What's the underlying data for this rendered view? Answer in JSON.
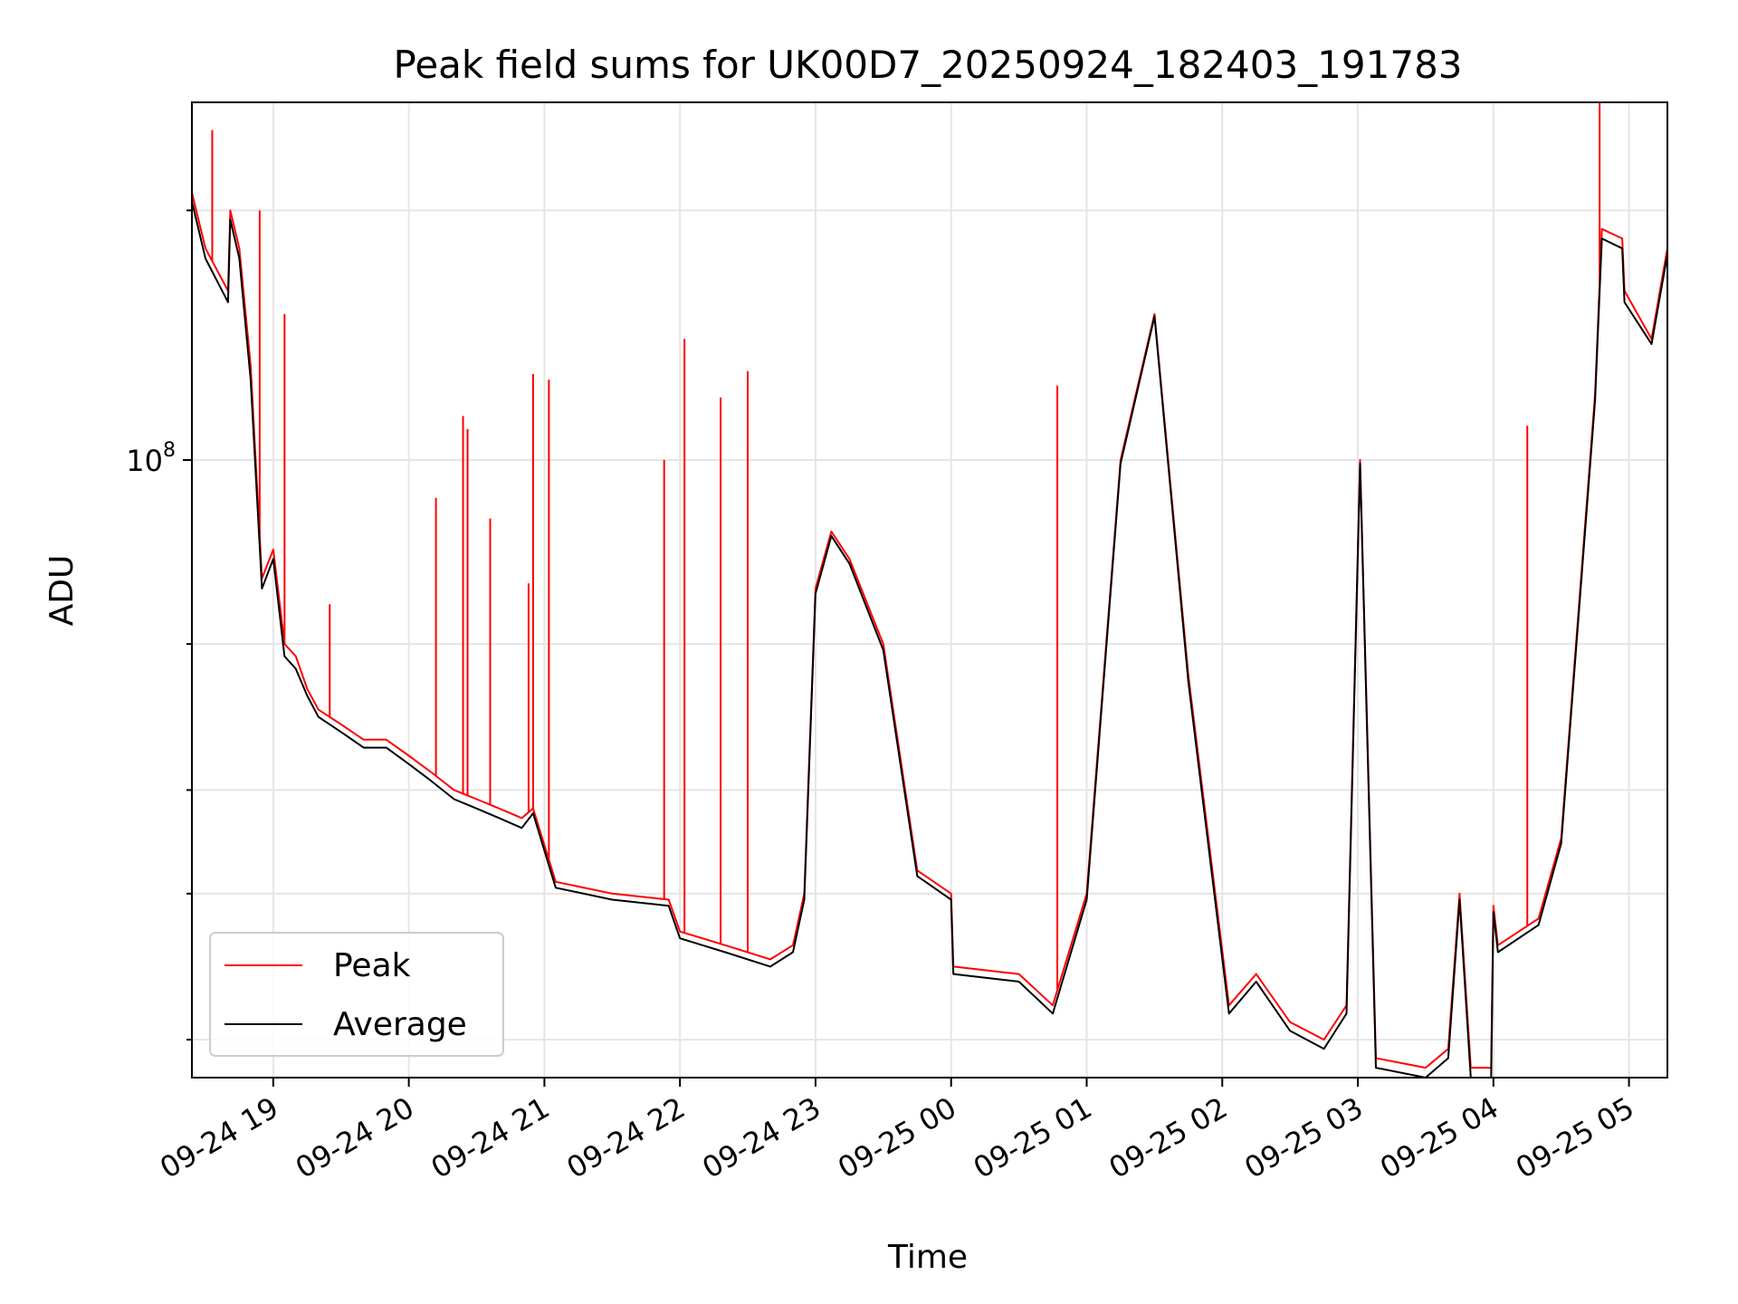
{
  "chart_data": {
    "type": "line",
    "title": "Peak field sums for UK00D7_20250924_182403_191783",
    "xlabel": "Time",
    "ylabel": "ADU",
    "yscale": "log",
    "y_tick_label": "10^8",
    "ylim": [
      18000000,
      270000000
    ],
    "xlim": [
      "2025-09-24 18:24",
      "2025-09-25 05:17"
    ],
    "x_ticks": [
      "09-24 19",
      "09-24 20",
      "09-24 21",
      "09-24 22",
      "09-24 23",
      "09-25 00",
      "09-25 01",
      "09-25 02",
      "09-25 03",
      "09-25 04",
      "09-25 05"
    ],
    "grid": true,
    "legend_position": "lower-left",
    "series": [
      {
        "name": "Peak",
        "color": "#ff0000",
        "x": [
          "2025-09-24 18:24",
          "2025-09-24 18:30",
          "2025-09-24 18:40",
          "2025-09-24 18:41",
          "2025-09-24 18:45",
          "2025-09-24 18:50",
          "2025-09-24 18:55",
          "2025-09-24 19:00",
          "2025-09-24 19:05",
          "2025-09-24 19:10",
          "2025-09-24 19:15",
          "2025-09-24 19:20",
          "2025-09-24 19:30",
          "2025-09-24 19:40",
          "2025-09-24 19:50",
          "2025-09-24 20:00",
          "2025-09-24 20:10",
          "2025-09-24 20:20",
          "2025-09-24 20:30",
          "2025-09-24 20:40",
          "2025-09-24 20:50",
          "2025-09-24 20:55",
          "2025-09-24 21:05",
          "2025-09-24 21:30",
          "2025-09-24 21:55",
          "2025-09-24 22:00",
          "2025-09-24 22:20",
          "2025-09-24 22:40",
          "2025-09-24 22:50",
          "2025-09-24 22:55",
          "2025-09-24 23:00",
          "2025-09-24 23:07",
          "2025-09-24 23:15",
          "2025-09-24 23:30",
          "2025-09-24 23:45",
          "2025-09-25 00:00",
          "2025-09-25 00:01",
          "2025-09-25 00:30",
          "2025-09-25 00:45",
          "2025-09-25 01:00",
          "2025-09-25 01:15",
          "2025-09-25 01:30",
          "2025-09-25 01:45",
          "2025-09-25 02:03",
          "2025-09-25 02:15",
          "2025-09-25 02:30",
          "2025-09-25 02:45",
          "2025-09-25 02:55",
          "2025-09-25 03:01",
          "2025-09-25 03:08",
          "2025-09-25 03:30",
          "2025-09-25 03:40",
          "2025-09-25 03:45",
          "2025-09-25 03:50",
          "2025-09-25 03:59",
          "2025-09-25 04:00",
          "2025-09-25 04:02",
          "2025-09-25 04:20",
          "2025-09-25 04:30",
          "2025-09-25 04:45",
          "2025-09-25 04:48",
          "2025-09-25 04:57",
          "2025-09-25 04:58",
          "2025-09-25 05:10",
          "2025-09-25 05:17"
        ],
        "y": [
          210000000,
          180000000,
          160000000,
          200000000,
          180000000,
          130000000,
          72000000,
          78000000,
          60000000,
          58000000,
          53000000,
          50000000,
          48000000,
          46000000,
          46000000,
          44000000,
          42000000,
          40000000,
          39000000,
          38000000,
          37000000,
          38000000,
          31000000,
          30000000,
          29500000,
          27000000,
          26000000,
          25000000,
          26000000,
          30000000,
          70000000,
          82000000,
          76000000,
          60000000,
          32000000,
          30000000,
          24500000,
          24000000,
          22000000,
          30000000,
          100000000,
          150000000,
          55000000,
          22000000,
          24000000,
          21000000,
          20000000,
          22000000,
          100000000,
          19000000,
          18500000,
          19500000,
          30000000,
          18500000,
          18500000,
          29000000,
          26000000,
          28000000,
          35000000,
          120000000,
          190000000,
          185000000,
          160000000,
          140000000,
          180000000
        ],
        "spikes": [
          {
            "x": "2025-09-24 18:33",
            "y": 250000000
          },
          {
            "x": "2025-09-24 18:54",
            "y": 200000000
          },
          {
            "x": "2025-09-24 19:05",
            "y": 150000000
          },
          {
            "x": "2025-09-24 19:25",
            "y": 67000000
          },
          {
            "x": "2025-09-24 20:12",
            "y": 90000000
          },
          {
            "x": "2025-09-24 20:24",
            "y": 113000000
          },
          {
            "x": "2025-09-24 20:26",
            "y": 109000000
          },
          {
            "x": "2025-09-24 20:36",
            "y": 85000000
          },
          {
            "x": "2025-09-24 20:53",
            "y": 71000000
          },
          {
            "x": "2025-09-24 20:55",
            "y": 127000000
          },
          {
            "x": "2025-09-24 21:02",
            "y": 125000000
          },
          {
            "x": "2025-09-24 21:53",
            "y": 100000000
          },
          {
            "x": "2025-09-24 22:02",
            "y": 140000000
          },
          {
            "x": "2025-09-24 22:18",
            "y": 119000000
          },
          {
            "x": "2025-09-24 22:30",
            "y": 128000000
          },
          {
            "x": "2025-09-25 00:47",
            "y": 123000000
          },
          {
            "x": "2025-09-25 04:15",
            "y": 110000000
          },
          {
            "x": "2025-09-25 04:47",
            "y": 270000000
          }
        ]
      },
      {
        "name": "Average",
        "color": "#000000",
        "x": [
          "2025-09-24 18:24",
          "2025-09-24 18:30",
          "2025-09-24 18:40",
          "2025-09-24 18:41",
          "2025-09-24 18:45",
          "2025-09-24 18:50",
          "2025-09-24 18:55",
          "2025-09-24 19:00",
          "2025-09-24 19:05",
          "2025-09-24 19:10",
          "2025-09-24 19:15",
          "2025-09-24 19:20",
          "2025-09-24 19:30",
          "2025-09-24 19:40",
          "2025-09-24 19:50",
          "2025-09-24 20:00",
          "2025-09-24 20:10",
          "2025-09-24 20:20",
          "2025-09-24 20:30",
          "2025-09-24 20:40",
          "2025-09-24 20:50",
          "2025-09-24 20:55",
          "2025-09-24 21:05",
          "2025-09-24 21:30",
          "2025-09-24 21:55",
          "2025-09-24 22:00",
          "2025-09-24 22:20",
          "2025-09-24 22:40",
          "2025-09-24 22:50",
          "2025-09-24 22:55",
          "2025-09-24 23:00",
          "2025-09-24 23:07",
          "2025-09-24 23:15",
          "2025-09-24 23:30",
          "2025-09-24 23:45",
          "2025-09-25 00:00",
          "2025-09-25 00:01",
          "2025-09-25 00:30",
          "2025-09-25 00:45",
          "2025-09-25 01:00",
          "2025-09-25 01:15",
          "2025-09-25 01:30",
          "2025-09-25 01:45",
          "2025-09-25 02:03",
          "2025-09-25 02:15",
          "2025-09-25 02:30",
          "2025-09-25 02:45",
          "2025-09-25 02:55",
          "2025-09-25 03:01",
          "2025-09-25 03:08",
          "2025-09-25 03:30",
          "2025-09-25 03:40",
          "2025-09-25 03:45",
          "2025-09-25 03:50",
          "2025-09-25 03:59",
          "2025-09-25 04:00",
          "2025-09-25 04:02",
          "2025-09-25 04:20",
          "2025-09-25 04:30",
          "2025-09-25 04:45",
          "2025-09-25 04:48",
          "2025-09-25 04:57",
          "2025-09-25 04:58",
          "2025-09-25 05:10",
          "2025-09-25 05:17"
        ],
        "y": [
          205000000,
          175000000,
          155000000,
          195000000,
          175000000,
          125000000,
          70000000,
          76000000,
          58000000,
          56000000,
          52000000,
          49000000,
          47000000,
          45000000,
          45000000,
          43000000,
          41000000,
          39000000,
          38000000,
          37000000,
          36000000,
          37500000,
          30500000,
          29500000,
          29000000,
          26500000,
          25500000,
          24500000,
          25500000,
          29500000,
          69000000,
          81000000,
          75000000,
          59000000,
          31500000,
          29500000,
          24000000,
          23500000,
          21500000,
          29500000,
          99000000,
          149000000,
          54000000,
          21500000,
          23500000,
          20500000,
          19500000,
          21500000,
          99000000,
          18500000,
          18000000,
          19000000,
          29500000,
          18000000,
          18000000,
          28500000,
          25500000,
          27500000,
          34500000,
          118000000,
          185000000,
          180000000,
          155000000,
          138000000,
          177000000
        ]
      }
    ]
  }
}
